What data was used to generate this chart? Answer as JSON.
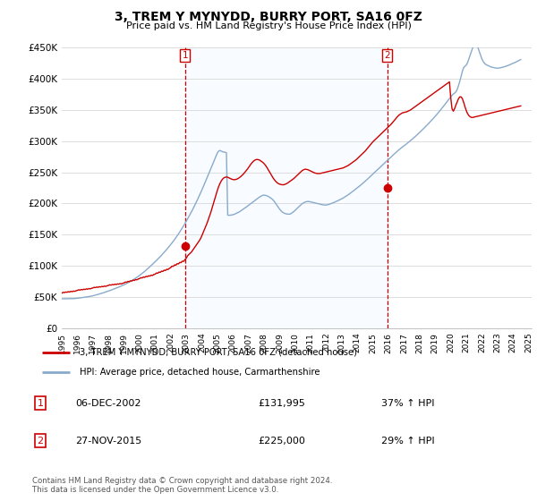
{
  "title": "3, TREM Y MYNYDD, BURRY PORT, SA16 0FZ",
  "subtitle": "Price paid vs. HM Land Registry's House Price Index (HPI)",
  "ylim": [
    0,
    450000
  ],
  "yticks": [
    0,
    50000,
    100000,
    150000,
    200000,
    250000,
    300000,
    350000,
    400000,
    450000
  ],
  "legend_line1": "3, TREM Y MYNYDD, BURRY PORT, SA16 0FZ (detached house)",
  "legend_line2": "HPI: Average price, detached house, Carmarthenshire",
  "annotation1_date": "06-DEC-2002",
  "annotation1_price": "£131,995",
  "annotation1_hpi": "37% ↑ HPI",
  "annotation2_date": "27-NOV-2015",
  "annotation2_price": "£225,000",
  "annotation2_hpi": "29% ↑ HPI",
  "footer1": "Contains HM Land Registry data © Crown copyright and database right 2024.",
  "footer2": "This data is licensed under the Open Government Licence v3.0.",
  "red_color": "#cc0000",
  "blue_color": "#88aacc",
  "shade_color": "#ddeeff",
  "sale1_x": 2002.92,
  "sale1_y": 131995,
  "sale2_x": 2015.92,
  "sale2_y": 225000,
  "hpi_years": [
    1995.0,
    1995.083,
    1995.167,
    1995.25,
    1995.333,
    1995.417,
    1995.5,
    1995.583,
    1995.667,
    1995.75,
    1995.833,
    1995.917,
    1996.0,
    1996.083,
    1996.167,
    1996.25,
    1996.333,
    1996.417,
    1996.5,
    1996.583,
    1996.667,
    1996.75,
    1996.833,
    1996.917,
    1997.0,
    1997.083,
    1997.167,
    1997.25,
    1997.333,
    1997.417,
    1997.5,
    1997.583,
    1997.667,
    1997.75,
    1997.833,
    1997.917,
    1998.0,
    1998.083,
    1998.167,
    1998.25,
    1998.333,
    1998.417,
    1998.5,
    1998.583,
    1998.667,
    1998.75,
    1998.833,
    1998.917,
    1999.0,
    1999.083,
    1999.167,
    1999.25,
    1999.333,
    1999.417,
    1999.5,
    1999.583,
    1999.667,
    1999.75,
    1999.833,
    1999.917,
    2000.0,
    2000.083,
    2000.167,
    2000.25,
    2000.333,
    2000.417,
    2000.5,
    2000.583,
    2000.667,
    2000.75,
    2000.833,
    2000.917,
    2001.0,
    2001.083,
    2001.167,
    2001.25,
    2001.333,
    2001.417,
    2001.5,
    2001.583,
    2001.667,
    2001.75,
    2001.833,
    2001.917,
    2002.0,
    2002.083,
    2002.167,
    2002.25,
    2002.333,
    2002.417,
    2002.5,
    2002.583,
    2002.667,
    2002.75,
    2002.833,
    2002.917,
    2003.0,
    2003.083,
    2003.167,
    2003.25,
    2003.333,
    2003.417,
    2003.5,
    2003.583,
    2003.667,
    2003.75,
    2003.833,
    2003.917,
    2004.0,
    2004.083,
    2004.167,
    2004.25,
    2004.333,
    2004.417,
    2004.5,
    2004.583,
    2004.667,
    2004.75,
    2004.833,
    2004.917,
    2005.0,
    2005.083,
    2005.167,
    2005.25,
    2005.333,
    2005.417,
    2005.5,
    2005.583,
    2005.667,
    2005.75,
    2005.833,
    2005.917,
    2006.0,
    2006.083,
    2006.167,
    2006.25,
    2006.333,
    2006.417,
    2006.5,
    2006.583,
    2006.667,
    2006.75,
    2006.833,
    2006.917,
    2007.0,
    2007.083,
    2007.167,
    2007.25,
    2007.333,
    2007.417,
    2007.5,
    2007.583,
    2007.667,
    2007.75,
    2007.833,
    2007.917,
    2008.0,
    2008.083,
    2008.167,
    2008.25,
    2008.333,
    2008.417,
    2008.5,
    2008.583,
    2008.667,
    2008.75,
    2008.833,
    2008.917,
    2009.0,
    2009.083,
    2009.167,
    2009.25,
    2009.333,
    2009.417,
    2009.5,
    2009.583,
    2009.667,
    2009.75,
    2009.833,
    2009.917,
    2010.0,
    2010.083,
    2010.167,
    2010.25,
    2010.333,
    2010.417,
    2010.5,
    2010.583,
    2010.667,
    2010.75,
    2010.833,
    2010.917,
    2011.0,
    2011.083,
    2011.167,
    2011.25,
    2011.333,
    2011.417,
    2011.5,
    2011.583,
    2011.667,
    2011.75,
    2011.833,
    2011.917,
    2012.0,
    2012.083,
    2012.167,
    2012.25,
    2012.333,
    2012.417,
    2012.5,
    2012.583,
    2012.667,
    2012.75,
    2012.833,
    2012.917,
    2013.0,
    2013.083,
    2013.167,
    2013.25,
    2013.333,
    2013.417,
    2013.5,
    2013.583,
    2013.667,
    2013.75,
    2013.833,
    2013.917,
    2014.0,
    2014.083,
    2014.167,
    2014.25,
    2014.333,
    2014.417,
    2014.5,
    2014.583,
    2014.667,
    2014.75,
    2014.833,
    2014.917,
    2015.0,
    2015.083,
    2015.167,
    2015.25,
    2015.333,
    2015.417,
    2015.5,
    2015.583,
    2015.667,
    2015.75,
    2015.833,
    2015.917,
    2016.0,
    2016.083,
    2016.167,
    2016.25,
    2016.333,
    2016.417,
    2016.5,
    2016.583,
    2016.667,
    2016.75,
    2016.833,
    2016.917,
    2017.0,
    2017.083,
    2017.167,
    2017.25,
    2017.333,
    2017.417,
    2017.5,
    2017.583,
    2017.667,
    2017.75,
    2017.833,
    2017.917,
    2018.0,
    2018.083,
    2018.167,
    2018.25,
    2018.333,
    2018.417,
    2018.5,
    2018.583,
    2018.667,
    2018.75,
    2018.833,
    2018.917,
    2019.0,
    2019.083,
    2019.167,
    2019.25,
    2019.333,
    2019.417,
    2019.5,
    2019.583,
    2019.667,
    2019.75,
    2019.833,
    2019.917,
    2020.0,
    2020.083,
    2020.167,
    2020.25,
    2020.333,
    2020.417,
    2020.5,
    2020.583,
    2020.667,
    2020.75,
    2020.833,
    2020.917,
    2021.0,
    2021.083,
    2021.167,
    2021.25,
    2021.333,
    2021.417,
    2021.5,
    2021.583,
    2021.667,
    2021.75,
    2021.833,
    2021.917,
    2022.0,
    2022.083,
    2022.167,
    2022.25,
    2022.333,
    2022.417,
    2022.5,
    2022.583,
    2022.667,
    2022.75,
    2022.833,
    2022.917,
    2023.0,
    2023.083,
    2023.167,
    2023.25,
    2023.333,
    2023.417,
    2023.5,
    2023.583,
    2023.667,
    2023.75,
    2023.833,
    2023.917,
    2024.0,
    2024.083,
    2024.167,
    2024.25,
    2024.333,
    2024.417,
    2024.5
  ],
  "hpi_vals": [
    47000,
    47200,
    47100,
    47300,
    47100,
    47400,
    47200,
    47500,
    47300,
    47600,
    47400,
    47800,
    48000,
    48300,
    48500,
    48800,
    49000,
    49300,
    49600,
    50000,
    50300,
    50700,
    51000,
    51400,
    52000,
    52500,
    53000,
    53600,
    54200,
    54800,
    55400,
    56000,
    56700,
    57400,
    58100,
    58800,
    59500,
    60200,
    61000,
    61800,
    62600,
    63400,
    64200,
    65000,
    65900,
    66800,
    67700,
    68600,
    69500,
    70500,
    71600,
    72700,
    73800,
    75000,
    76200,
    77500,
    78800,
    80200,
    81600,
    83100,
    84600,
    86200,
    87800,
    89500,
    91200,
    93000,
    94800,
    96700,
    98600,
    100500,
    102500,
    104500,
    106500,
    108500,
    110600,
    112700,
    114900,
    117100,
    119400,
    121700,
    124000,
    126400,
    128900,
    131400,
    134000,
    136600,
    139300,
    142100,
    145000,
    148000,
    151100,
    154300,
    157600,
    160900,
    164300,
    167800,
    171400,
    175100,
    178800,
    182600,
    186500,
    190500,
    194600,
    198800,
    203100,
    207500,
    212000,
    216600,
    221300,
    226100,
    231000,
    235900,
    240900,
    245900,
    250900,
    255900,
    261000,
    266000,
    271000,
    276000,
    281000,
    284000,
    285000,
    284000,
    283000,
    282500,
    282000,
    281500,
    181500,
    181000,
    181200,
    181500,
    182000,
    182500,
    183500,
    184500,
    185500,
    186600,
    188000,
    189400,
    190800,
    192300,
    193800,
    195400,
    197000,
    198600,
    200200,
    201800,
    203400,
    205000,
    206500,
    208000,
    209500,
    211000,
    212000,
    213000,
    213500,
    213000,
    212500,
    211500,
    210500,
    209000,
    207500,
    205500,
    203000,
    200000,
    197000,
    194000,
    191000,
    188500,
    186500,
    185000,
    184000,
    183500,
    183000,
    182800,
    183000,
    184000,
    185500,
    187000,
    189000,
    191000,
    193000,
    195000,
    197000,
    199000,
    200500,
    201500,
    202500,
    203000,
    203200,
    203000,
    202500,
    202000,
    201500,
    201000,
    200500,
    200000,
    199500,
    199000,
    198500,
    198000,
    197700,
    197500,
    197500,
    198000,
    198500,
    199200,
    200000,
    200800,
    201700,
    202600,
    203600,
    204500,
    205500,
    206600,
    207600,
    208700,
    210000,
    211300,
    212700,
    214100,
    215600,
    217100,
    218700,
    220300,
    221900,
    223500,
    225100,
    226800,
    228500,
    230200,
    232000,
    233800,
    235600,
    237500,
    239400,
    241400,
    243400,
    245400,
    247400,
    249300,
    251200,
    253200,
    255100,
    257000,
    259000,
    261000,
    262900,
    264800,
    266800,
    268700,
    270600,
    272600,
    274600,
    276500,
    278400,
    280400,
    282300,
    284200,
    286000,
    287700,
    289400,
    291000,
    292500,
    294000,
    295700,
    297400,
    299100,
    300800,
    302600,
    304400,
    306200,
    308100,
    310000,
    311900,
    313900,
    315900,
    317900,
    319900,
    322000,
    324100,
    326200,
    328400,
    330600,
    332800,
    335100,
    337400,
    339700,
    342100,
    344600,
    347100,
    349600,
    352200,
    354800,
    357400,
    360100,
    362800,
    365500,
    368300,
    371000,
    373500,
    375500,
    377000,
    379000,
    383000,
    389000,
    396000,
    404000,
    412000,
    418000,
    420000,
    422000,
    426000,
    432000,
    438000,
    444000,
    450000,
    454000,
    456000,
    455000,
    450000,
    444000,
    438000,
    432000,
    428000,
    425000,
    423000,
    422000,
    421000,
    420000,
    419000,
    418500,
    418000,
    417500,
    417000,
    417000,
    417200,
    417500,
    418000,
    418500,
    419000,
    419700,
    420400,
    421200,
    422000,
    422900,
    423800,
    424700,
    425600,
    426600,
    427600,
    428600,
    429700,
    430800
  ],
  "price_years": [
    1995.0,
    1995.083,
    1995.167,
    1995.25,
    1995.333,
    1995.417,
    1995.5,
    1995.583,
    1995.667,
    1995.75,
    1995.833,
    1995.917,
    1996.0,
    1996.083,
    1996.167,
    1996.25,
    1996.333,
    1996.417,
    1996.5,
    1996.583,
    1996.667,
    1996.75,
    1996.833,
    1996.917,
    1997.0,
    1997.083,
    1997.167,
    1997.25,
    1997.333,
    1997.417,
    1997.5,
    1997.583,
    1997.667,
    1997.75,
    1997.833,
    1997.917,
    1998.0,
    1998.083,
    1998.167,
    1998.25,
    1998.333,
    1998.417,
    1998.5,
    1998.583,
    1998.667,
    1998.75,
    1998.833,
    1998.917,
    1999.0,
    1999.083,
    1999.167,
    1999.25,
    1999.333,
    1999.417,
    1999.5,
    1999.583,
    1999.667,
    1999.75,
    1999.833,
    1999.917,
    2000.0,
    2000.083,
    2000.167,
    2000.25,
    2000.333,
    2000.417,
    2000.5,
    2000.583,
    2000.667,
    2000.75,
    2000.833,
    2000.917,
    2001.0,
    2001.083,
    2001.167,
    2001.25,
    2001.333,
    2001.417,
    2001.5,
    2001.583,
    2001.667,
    2001.75,
    2001.833,
    2001.917,
    2002.0,
    2002.083,
    2002.167,
    2002.25,
    2002.333,
    2002.417,
    2002.5,
    2002.583,
    2002.667,
    2002.75,
    2002.833,
    2002.917,
    2003.0,
    2003.083,
    2003.167,
    2003.25,
    2003.333,
    2003.417,
    2003.5,
    2003.583,
    2003.667,
    2003.75,
    2003.833,
    2003.917,
    2004.0,
    2004.083,
    2004.167,
    2004.25,
    2004.333,
    2004.417,
    2004.5,
    2004.583,
    2004.667,
    2004.75,
    2004.833,
    2004.917,
    2005.0,
    2005.083,
    2005.167,
    2005.25,
    2005.333,
    2005.417,
    2005.5,
    2005.583,
    2005.667,
    2005.75,
    2005.833,
    2005.917,
    2006.0,
    2006.083,
    2006.167,
    2006.25,
    2006.333,
    2006.417,
    2006.5,
    2006.583,
    2006.667,
    2006.75,
    2006.833,
    2006.917,
    2007.0,
    2007.083,
    2007.167,
    2007.25,
    2007.333,
    2007.417,
    2007.5,
    2007.583,
    2007.667,
    2007.75,
    2007.833,
    2007.917,
    2008.0,
    2008.083,
    2008.167,
    2008.25,
    2008.333,
    2008.417,
    2008.5,
    2008.583,
    2008.667,
    2008.75,
    2008.833,
    2008.917,
    2009.0,
    2009.083,
    2009.167,
    2009.25,
    2009.333,
    2009.417,
    2009.5,
    2009.583,
    2009.667,
    2009.75,
    2009.833,
    2009.917,
    2010.0,
    2010.083,
    2010.167,
    2010.25,
    2010.333,
    2010.417,
    2010.5,
    2010.583,
    2010.667,
    2010.75,
    2010.833,
    2010.917,
    2011.0,
    2011.083,
    2011.167,
    2011.25,
    2011.333,
    2011.417,
    2011.5,
    2011.583,
    2011.667,
    2011.75,
    2011.833,
    2011.917,
    2012.0,
    2012.083,
    2012.167,
    2012.25,
    2012.333,
    2012.417,
    2012.5,
    2012.583,
    2012.667,
    2012.75,
    2012.833,
    2012.917,
    2013.0,
    2013.083,
    2013.167,
    2013.25,
    2013.333,
    2013.417,
    2013.5,
    2013.583,
    2013.667,
    2013.75,
    2013.833,
    2013.917,
    2014.0,
    2014.083,
    2014.167,
    2014.25,
    2014.333,
    2014.417,
    2014.5,
    2014.583,
    2014.667,
    2014.75,
    2014.833,
    2014.917,
    2015.0,
    2015.083,
    2015.167,
    2015.25,
    2015.333,
    2015.417,
    2015.5,
    2015.583,
    2015.667,
    2015.75,
    2015.833,
    2015.917,
    2016.0,
    2016.083,
    2016.167,
    2016.25,
    2016.333,
    2016.417,
    2016.5,
    2016.583,
    2016.667,
    2016.75,
    2016.833,
    2016.917,
    2017.0,
    2017.083,
    2017.167,
    2017.25,
    2017.333,
    2017.417,
    2017.5,
    2017.583,
    2017.667,
    2017.75,
    2017.833,
    2017.917,
    2018.0,
    2018.083,
    2018.167,
    2018.25,
    2018.333,
    2018.417,
    2018.5,
    2018.583,
    2018.667,
    2018.75,
    2018.833,
    2018.917,
    2019.0,
    2019.083,
    2019.167,
    2019.25,
    2019.333,
    2019.417,
    2019.5,
    2019.583,
    2019.667,
    2019.75,
    2019.833,
    2019.917,
    2020.0,
    2020.083,
    2020.167,
    2020.25,
    2020.333,
    2020.417,
    2020.5,
    2020.583,
    2020.667,
    2020.75,
    2020.833,
    2020.917,
    2021.0,
    2021.083,
    2021.167,
    2021.25,
    2021.333,
    2021.417,
    2021.5,
    2021.583,
    2021.667,
    2021.75,
    2021.833,
    2021.917,
    2022.0,
    2022.083,
    2022.167,
    2022.25,
    2022.333,
    2022.417,
    2022.5,
    2022.583,
    2022.667,
    2022.75,
    2022.833,
    2022.917,
    2023.0,
    2023.083,
    2023.167,
    2023.25,
    2023.333,
    2023.417,
    2023.5,
    2023.583,
    2023.667,
    2023.75,
    2023.833,
    2023.917,
    2024.0,
    2024.083,
    2024.167,
    2024.25,
    2024.333,
    2024.417,
    2024.5
  ],
  "price_vals": [
    56000,
    57500,
    57000,
    58000,
    57500,
    58500,
    58000,
    59000,
    58500,
    59500,
    59000,
    60000,
    60500,
    61500,
    61000,
    62000,
    61500,
    62500,
    62000,
    63000,
    62500,
    63500,
    63000,
    64000,
    64500,
    65500,
    65000,
    66000,
    65500,
    66500,
    66000,
    67000,
    66500,
    67500,
    67000,
    68000,
    68500,
    69500,
    69000,
    70000,
    69500,
    70500,
    70000,
    71000,
    70500,
    71500,
    71000,
    72000,
    72500,
    74000,
    73500,
    75000,
    74500,
    76000,
    75500,
    77000,
    76500,
    78000,
    77500,
    79000,
    79500,
    81000,
    80500,
    82000,
    81500,
    83000,
    82500,
    84000,
    83500,
    85000,
    84500,
    86000,
    86500,
    88500,
    88000,
    90000,
    89500,
    91500,
    91000,
    93000,
    92500,
    94500,
    94000,
    96000,
    97000,
    99500,
    99000,
    101500,
    101000,
    103500,
    103000,
    105500,
    105000,
    107500,
    107000,
    110000,
    112000,
    116000,
    118000,
    120000,
    122000,
    125000,
    128000,
    131000,
    134000,
    137000,
    140000,
    143500,
    148000,
    153000,
    158000,
    163000,
    168000,
    174000,
    180000,
    186000,
    193000,
    200000,
    207000,
    214000,
    221000,
    227000,
    232000,
    236000,
    239000,
    241000,
    242000,
    242500,
    242000,
    241000,
    240000,
    239000,
    238500,
    238000,
    238500,
    239000,
    240000,
    241500,
    243000,
    245000,
    247000,
    249500,
    252000,
    254500,
    257500,
    260500,
    263500,
    266000,
    268000,
    269500,
    270500,
    270500,
    270000,
    269000,
    267500,
    266000,
    264000,
    261500,
    258500,
    255000,
    251500,
    248000,
    244500,
    241000,
    238000,
    235500,
    233500,
    232000,
    231000,
    230500,
    230000,
    230000,
    230500,
    231500,
    232500,
    234000,
    235500,
    237000,
    238500,
    240000,
    242000,
    244000,
    246000,
    248000,
    250000,
    252000,
    253500,
    254500,
    255000,
    254500,
    254000,
    253000,
    252000,
    251000,
    250000,
    249000,
    248500,
    248000,
    248000,
    248000,
    248500,
    249000,
    249500,
    250000,
    250500,
    251000,
    251500,
    252000,
    252500,
    253000,
    253500,
    254000,
    254500,
    255000,
    255500,
    256000,
    256500,
    257000,
    258000,
    259000,
    260000,
    261000,
    262500,
    264000,
    265500,
    267000,
    268500,
    270000,
    272000,
    274000,
    276000,
    278000,
    280000,
    282000,
    284000,
    286500,
    289000,
    291500,
    294000,
    296500,
    299000,
    301000,
    303000,
    305000,
    307000,
    309000,
    311000,
    313000,
    315000,
    317000,
    319000,
    321000,
    323000,
    325000,
    327000,
    329500,
    332000,
    334500,
    337000,
    339500,
    341500,
    343000,
    344500,
    345500,
    346000,
    346500,
    347000,
    348000,
    349000,
    350000,
    351500,
    353000,
    354500,
    356000,
    357500,
    359000,
    360500,
    362000,
    363500,
    365000,
    366500,
    368000,
    369500,
    371000,
    372500,
    374000,
    375500,
    377000,
    378500,
    380000,
    381500,
    383000,
    384500,
    386000,
    387500,
    389000,
    390500,
    392000,
    393500,
    395000,
    370000,
    352000,
    348000,
    352000,
    358000,
    363000,
    368000,
    371000,
    371000,
    368000,
    362000,
    355000,
    349000,
    344000,
    341000,
    339000,
    338000,
    338000,
    338500,
    339000,
    339500,
    340000,
    340500,
    341000,
    341500,
    342000,
    342500,
    343000,
    343500,
    344000,
    344500,
    345000,
    345500,
    346000,
    346500,
    347000,
    347500,
    348000,
    348500,
    349000,
    349500,
    350000,
    350500,
    351000,
    351500,
    352000,
    352500,
    353000,
    353500,
    354000,
    354500,
    355000,
    355500,
    356000,
    356500
  ],
  "xtick_years": [
    1995,
    1996,
    1997,
    1998,
    1999,
    2000,
    2001,
    2002,
    2003,
    2004,
    2005,
    2006,
    2007,
    2008,
    2009,
    2010,
    2011,
    2012,
    2013,
    2014,
    2015,
    2016,
    2017,
    2018,
    2019,
    2020,
    2021,
    2022,
    2023,
    2024,
    2025
  ]
}
